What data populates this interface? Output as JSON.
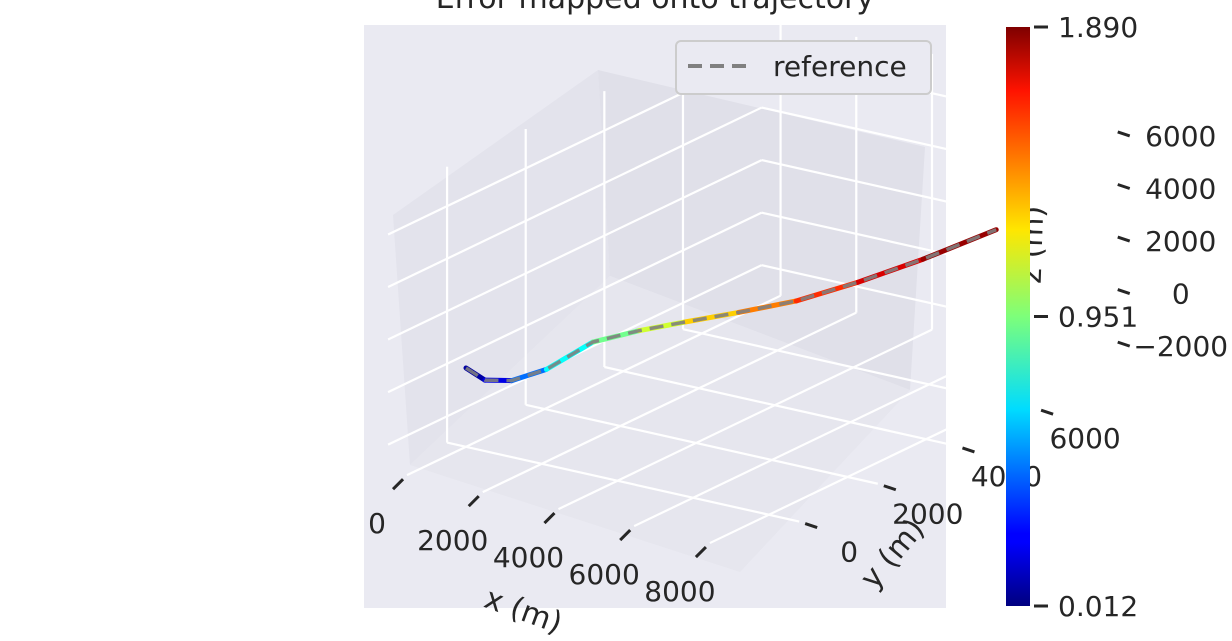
{
  "chart_data": {
    "type": "line",
    "projection": "3d",
    "title": "Error mapped onto trajectory",
    "xlabel": "x (m)",
    "ylabel": "y (m)",
    "zlabel": "z (m)",
    "xlim": [
      -500,
      8800
    ],
    "ylim": [
      -1500,
      8000
    ],
    "zlim": [
      -3000,
      7500
    ],
    "x_ticks": [
      "0",
      "2000",
      "4000",
      "6000",
      "8000"
    ],
    "y_ticks": [
      "0",
      "2000",
      "4000",
      "6000"
    ],
    "z_ticks": [
      "−2000",
      "0",
      "2000",
      "4000",
      "6000"
    ],
    "grid": true,
    "legend": {
      "position": "top-right",
      "entries": [
        "reference"
      ]
    },
    "series": [
      {
        "name": "reference",
        "style": "dashed",
        "color": "#808080",
        "x": [
          0,
          500,
          1000,
          1500,
          2000,
          2700,
          3500,
          4500,
          5500,
          6500,
          7500,
          8500
        ],
        "y": [
          0,
          0,
          200,
          600,
          1300,
          1800,
          2200,
          2600,
          3100,
          3700,
          4400,
          5300
        ],
        "z": [
          0,
          -300,
          -300,
          0,
          700,
          1000,
          1300,
          1700,
          2100,
          2700,
          3400,
          4200
        ]
      }
    ],
    "colorbar": {
      "colormap": "jet",
      "min": 0.012,
      "max": 1.89,
      "tick_labels": [
        "0.012",
        "0.951",
        "1.890"
      ],
      "tick_values": [
        0.012,
        0.951,
        1.89
      ]
    },
    "error_values": [
      0.05,
      0.1,
      0.3,
      0.6,
      0.85,
      1.0,
      1.2,
      1.35,
      1.5,
      1.65,
      1.8,
      1.89
    ]
  }
}
